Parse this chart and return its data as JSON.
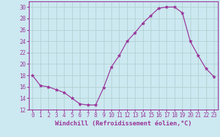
{
  "x": [
    0,
    1,
    2,
    3,
    4,
    5,
    6,
    7,
    8,
    9,
    10,
    11,
    12,
    13,
    14,
    15,
    16,
    17,
    18,
    19,
    20,
    21,
    22,
    23
  ],
  "y": [
    18,
    16.2,
    16,
    15.5,
    15,
    14,
    13,
    12.8,
    12.8,
    15.8,
    19.5,
    21.5,
    24,
    25.5,
    27.2,
    28.5,
    29.8,
    30,
    30,
    29,
    24,
    21.5,
    19.2,
    17.8
  ],
  "line_color": "#993399",
  "marker": "*",
  "marker_size": 3.5,
  "bg_color": "#cce8f0",
  "grid_color": "#aacccc",
  "xlabel": "Windchill (Refroidissement éolien,°C)",
  "ylabel": "",
  "xlim": [
    -0.5,
    23.5
  ],
  "ylim": [
    12,
    31
  ],
  "yticks": [
    12,
    14,
    16,
    18,
    20,
    22,
    24,
    26,
    28,
    30
  ],
  "xticks": [
    0,
    1,
    2,
    3,
    4,
    5,
    6,
    7,
    8,
    9,
    10,
    11,
    12,
    13,
    14,
    15,
    16,
    17,
    18,
    19,
    20,
    21,
    22,
    23
  ],
  "tick_label_fontsize": 5.5,
  "xlabel_fontsize": 6.5,
  "spine_color": "#993399"
}
